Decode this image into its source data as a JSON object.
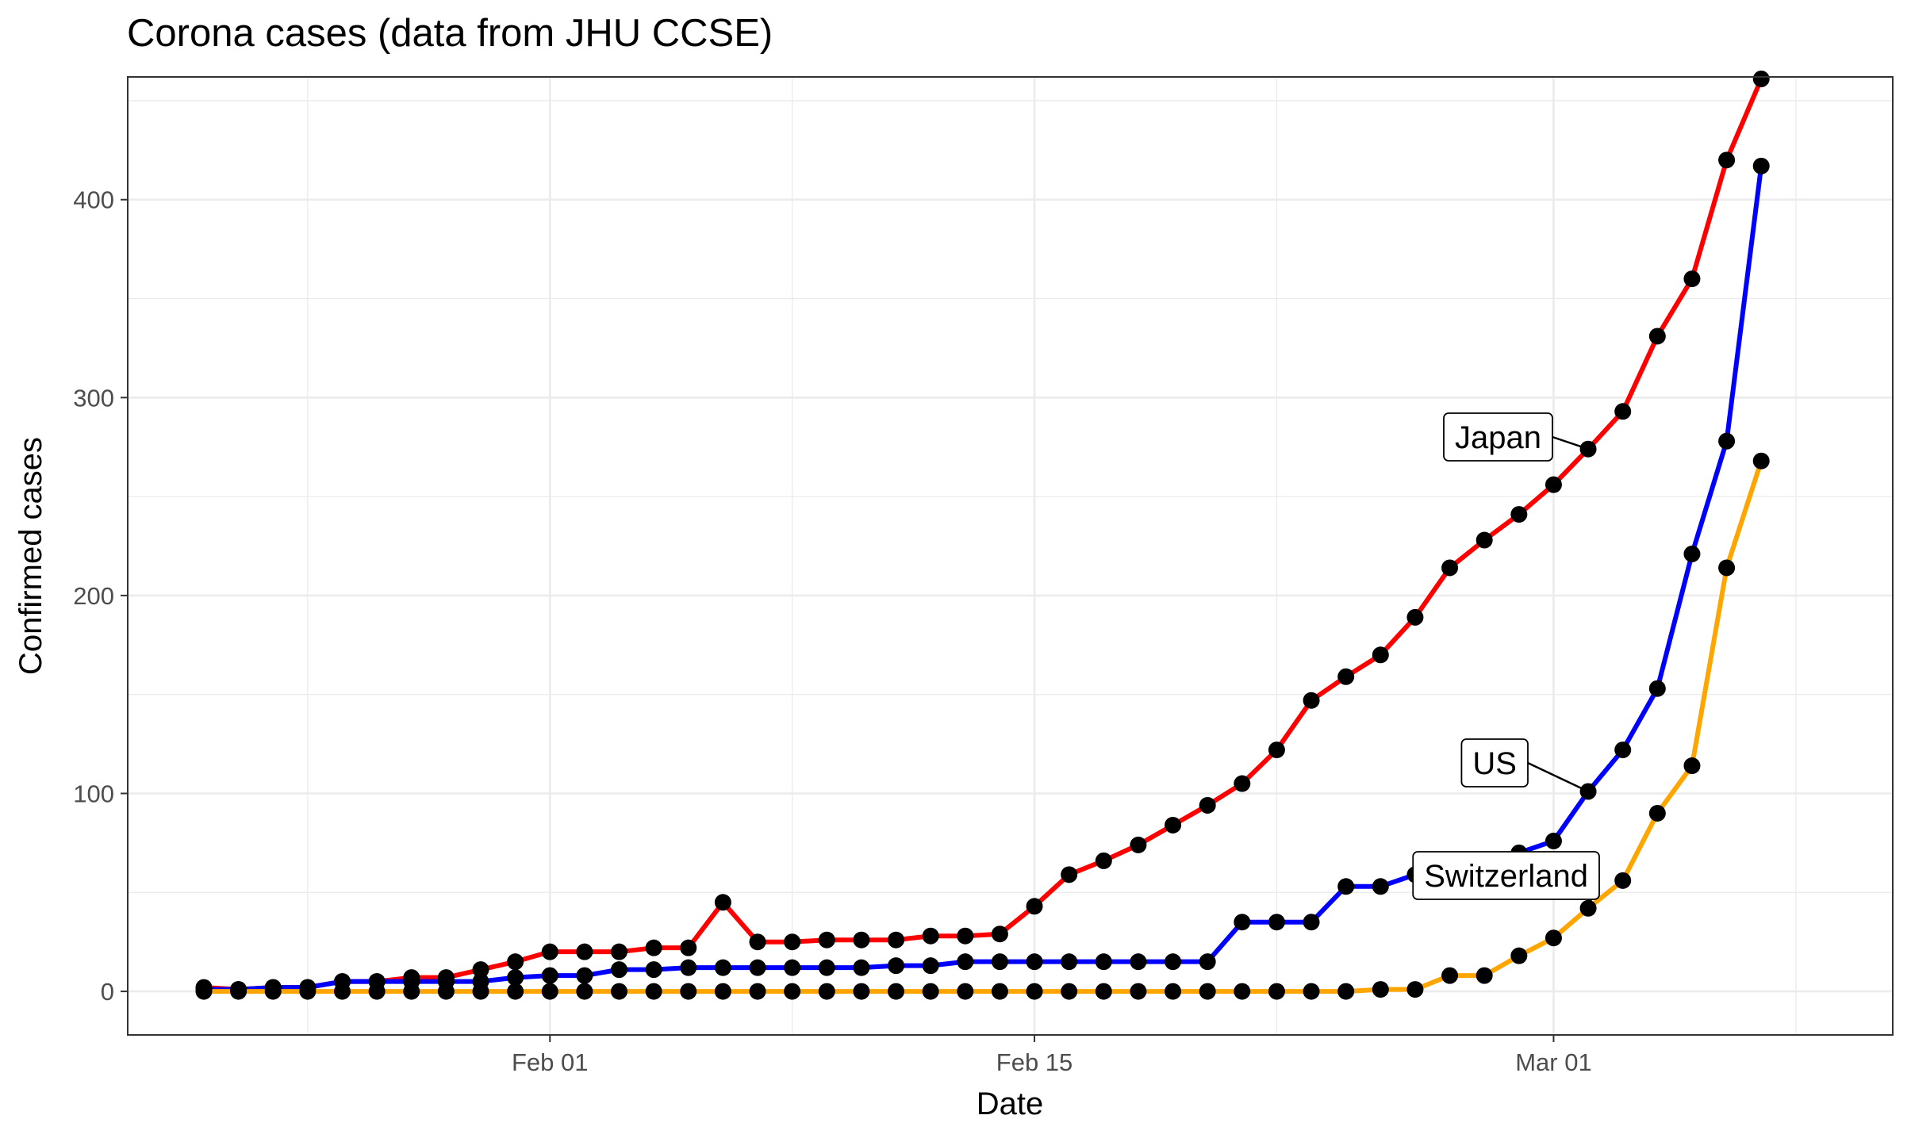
{
  "chart_data": {
    "type": "line",
    "title": "Corona cases (data from JHU CCSE)",
    "xlabel": "Date",
    "ylabel": "Confirmed cases",
    "x": [
      "2020-01-22",
      "2020-01-23",
      "2020-01-24",
      "2020-01-25",
      "2020-01-26",
      "2020-01-27",
      "2020-01-28",
      "2020-01-29",
      "2020-01-30",
      "2020-01-31",
      "2020-02-01",
      "2020-02-02",
      "2020-02-03",
      "2020-02-04",
      "2020-02-05",
      "2020-02-06",
      "2020-02-07",
      "2020-02-08",
      "2020-02-09",
      "2020-02-10",
      "2020-02-11",
      "2020-02-12",
      "2020-02-13",
      "2020-02-14",
      "2020-02-15",
      "2020-02-16",
      "2020-02-17",
      "2020-02-18",
      "2020-02-19",
      "2020-02-20",
      "2020-02-21",
      "2020-02-22",
      "2020-02-23",
      "2020-02-24",
      "2020-02-25",
      "2020-02-26",
      "2020-02-27",
      "2020-02-28",
      "2020-02-29",
      "2020-03-01",
      "2020-03-02",
      "2020-03-03",
      "2020-03-04",
      "2020-03-05",
      "2020-03-06",
      "2020-03-07",
      "2020-03-08"
    ],
    "xlim": [
      "2020-01-19.8",
      "2020-03-10.8"
    ],
    "xticks": [
      {
        "date": "2020-02-01",
        "label": "Feb 01"
      },
      {
        "date": "2020-02-15",
        "label": "Feb 15"
      },
      {
        "date": "2020-03-01",
        "label": "Mar 01"
      }
    ],
    "x_minor_grid": [
      "2020-01-25",
      "2020-02-08",
      "2020-02-22",
      "2020-03-08"
    ],
    "ylim": [
      -22,
      462
    ],
    "yticks": [
      0,
      100,
      200,
      300,
      400
    ],
    "y_minor_grid": [
      50,
      150,
      250,
      350,
      450
    ],
    "grid": true,
    "legend": "none",
    "series": [
      {
        "name": "Japan",
        "color": "#FF0000",
        "values": [
          2,
          1,
          2,
          2,
          5,
          5,
          7,
          7,
          11,
          15,
          20,
          20,
          20,
          22,
          22,
          45,
          25,
          25,
          26,
          26,
          26,
          28,
          28,
          29,
          43,
          59,
          66,
          74,
          84,
          94,
          105,
          122,
          147,
          159,
          170,
          189,
          214,
          228,
          241,
          256,
          274,
          293,
          331,
          360,
          420,
          461,
          null
        ]
      },
      {
        "name": "US",
        "color": "#0000FF",
        "values": [
          1,
          1,
          2,
          2,
          5,
          5,
          5,
          5,
          5,
          7,
          8,
          8,
          11,
          11,
          12,
          12,
          12,
          12,
          12,
          12,
          13,
          13,
          15,
          15,
          15,
          15,
          15,
          15,
          15,
          15,
          35,
          35,
          35,
          53,
          53,
          59,
          60,
          62,
          70,
          76,
          101,
          122,
          153,
          221,
          278,
          417,
          null
        ]
      },
      {
        "name": "Switzerland",
        "color": "#FFA500",
        "values": [
          0,
          0,
          0,
          0,
          0,
          0,
          0,
          0,
          0,
          0,
          0,
          0,
          0,
          0,
          0,
          0,
          0,
          0,
          0,
          0,
          0,
          0,
          0,
          0,
          0,
          0,
          0,
          0,
          0,
          0,
          0,
          0,
          0,
          0,
          1,
          1,
          8,
          8,
          18,
          27,
          42,
          56,
          90,
          114,
          214,
          268,
          null
        ]
      }
    ],
    "annotations": [
      {
        "label": "Japan",
        "series": "Japan",
        "point_date": "2020-03-02"
      },
      {
        "label": "US",
        "series": "US",
        "point_date": "2020-03-02"
      },
      {
        "label": "Switzerland",
        "series": "Switzerland",
        "point_date": "2020-03-02"
      }
    ]
  }
}
